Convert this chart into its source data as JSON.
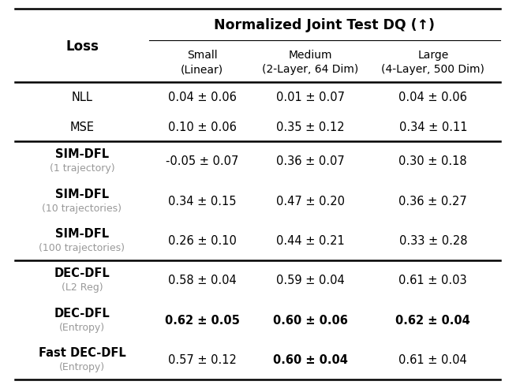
{
  "title": "Normalized Joint Test DQ (↑)",
  "col_header_labels": [
    "Small\n(Linear)",
    "Medium\n(2-Layer, 64 Dim)",
    "Large\n(4-Layer, 500 Dim)"
  ],
  "rows": [
    {
      "label_main": "NLL",
      "label_sub": "",
      "label_sub_color": "#999999",
      "label_main_bold": false,
      "values": [
        "0.04 ± 0.06",
        "0.01 ± 0.07",
        "0.04 ± 0.06"
      ],
      "bold": [
        false,
        false,
        false
      ],
      "group": 0
    },
    {
      "label_main": "MSE",
      "label_sub": "",
      "label_sub_color": "#999999",
      "label_main_bold": false,
      "values": [
        "0.10 ± 0.06",
        "0.35 ± 0.12",
        "0.34 ± 0.11"
      ],
      "bold": [
        false,
        false,
        false
      ],
      "group": 0
    },
    {
      "label_main": "SIM-DFL",
      "label_sub": "(1 trajectory)",
      "label_sub_color": "#999999",
      "label_main_bold": true,
      "values": [
        "-0.05 ± 0.07",
        "0.36 ± 0.07",
        "0.30 ± 0.18"
      ],
      "bold": [
        false,
        false,
        false
      ],
      "group": 1
    },
    {
      "label_main": "SIM-DFL",
      "label_sub": "(10 trajectories)",
      "label_sub_color": "#999999",
      "label_main_bold": true,
      "values": [
        "0.34 ± 0.15",
        "0.47 ± 0.20",
        "0.36 ± 0.27"
      ],
      "bold": [
        false,
        false,
        false
      ],
      "group": 1
    },
    {
      "label_main": "SIM-DFL",
      "label_sub": "(100 trajectories)",
      "label_sub_color": "#999999",
      "label_main_bold": true,
      "values": [
        "0.26 ± 0.10",
        "0.44 ± 0.21",
        "0.33 ± 0.28"
      ],
      "bold": [
        false,
        false,
        false
      ],
      "group": 1
    },
    {
      "label_main": "DEC-DFL",
      "label_sub": "(L2 Reg)",
      "label_sub_color": "#999999",
      "label_main_bold": true,
      "values": [
        "0.58 ± 0.04",
        "0.59 ± 0.04",
        "0.61 ± 0.03"
      ],
      "bold": [
        false,
        false,
        false
      ],
      "group": 2
    },
    {
      "label_main": "DEC-DFL",
      "label_sub": "(Entropy)",
      "label_sub_color": "#999999",
      "label_main_bold": true,
      "values": [
        "0.62 ± 0.05",
        "0.60 ± 0.06",
        "0.62 ± 0.04"
      ],
      "bold": [
        true,
        true,
        true
      ],
      "group": 2
    },
    {
      "label_main": "Fast DEC-DFL",
      "label_sub": "(Entropy)",
      "label_sub_color": "#999999",
      "label_main_bold": true,
      "values": [
        "0.57 ± 0.12",
        "0.60 ± 0.04",
        "0.61 ± 0.04"
      ],
      "bold": [
        false,
        true,
        false
      ],
      "group": 2
    }
  ],
  "background_color": "#ffffff",
  "text_color": "#000000",
  "figsize": [
    6.4,
    4.89
  ],
  "dpi": 100
}
